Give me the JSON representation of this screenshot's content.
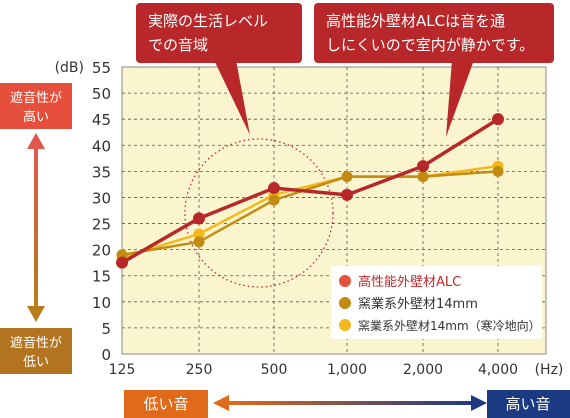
{
  "chart_data": {
    "type": "line",
    "x": [
      "125",
      "250",
      "500",
      "1,000",
      "2,000",
      "4,000"
    ],
    "xunit": "(Hz)",
    "yunit": "(dB)",
    "ylim": [
      0,
      55
    ],
    "yticks": [
      0,
      5,
      10,
      15,
      20,
      25,
      30,
      35,
      40,
      45,
      50,
      55
    ],
    "grid": true,
    "legend_position": "bottom-right",
    "series": [
      {
        "name": "高性能外壁材ALC",
        "values": [
          17.5,
          26,
          31.8,
          30.5,
          36,
          45
        ],
        "color": "#b8282a"
      },
      {
        "name": "窯業系外壁材14mm",
        "values": [
          19,
          21.5,
          29.5,
          34,
          34,
          35
        ],
        "color": "#c28b12"
      },
      {
        "name": "窯業系外壁材14mm（寒冷地向）",
        "values": [
          18.5,
          23,
          30.5,
          34,
          34,
          36
        ],
        "color": "#f5b81c"
      }
    ],
    "annotations": {
      "real_life": [
        "実際の生活レベル",
        "での音域"
      ],
      "alc_note": [
        "高性能外壁材ALCは音を通",
        "しにくいので室内が静かです。"
      ]
    },
    "left_axis": {
      "high": [
        "遮音性が",
        "高い"
      ],
      "low": [
        "遮音性が",
        "低い"
      ]
    },
    "bottom_axis": {
      "low": "低い音",
      "high": "高い音"
    },
    "colors": {
      "plot_bg": "#fbf5cf",
      "callout": "#b8282a",
      "high_box": "#e64f3c",
      "low_box": "#b3741f",
      "low_sound": "#e06a1a",
      "high_sound": "#1c3a82"
    }
  }
}
